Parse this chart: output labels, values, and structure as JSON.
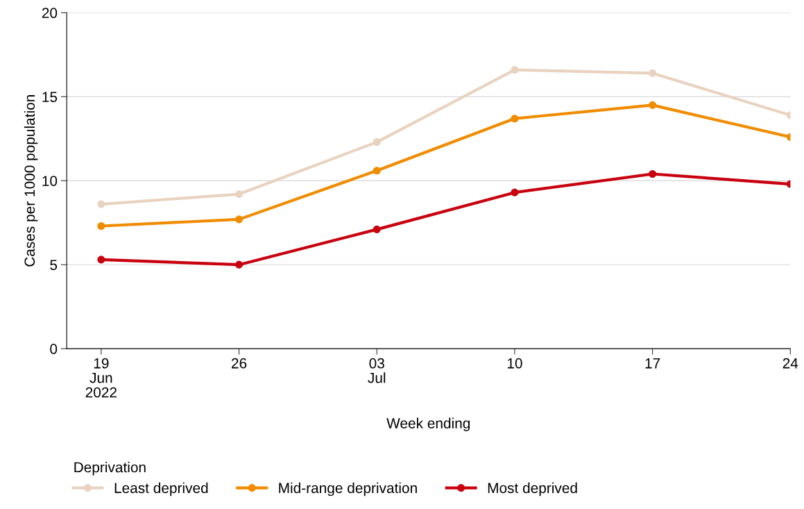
{
  "chart_data": {
    "type": "line",
    "xlabel": "Week ending",
    "ylabel": "Cases per 1000 population",
    "legend_title": "Deprivation",
    "legend": "bottom",
    "grid": "y",
    "marker": "circle",
    "line_style": "solid",
    "x": [
      "2022-06-19",
      "2022-06-26",
      "2022-07-03",
      "2022-07-10",
      "2022-07-17",
      "2022-07-24"
    ],
    "xlim": [
      "2022-06-17T06:00",
      "2022-07-24"
    ],
    "xticks": [
      {
        "value": "2022-06-19",
        "label": "19\nJun\n2022"
      },
      {
        "value": "2022-06-26",
        "label": "26"
      },
      {
        "value": "2022-07-03",
        "label": "03\nJul"
      },
      {
        "value": "2022-07-10",
        "label": "10"
      },
      {
        "value": "2022-07-17",
        "label": "17"
      },
      {
        "value": "2022-07-24",
        "label": "24"
      }
    ],
    "ylim": [
      0,
      20
    ],
    "yticks": [
      0,
      5,
      10,
      15,
      20
    ],
    "series": [
      {
        "name": "Least deprived",
        "color": "#e8d3c0",
        "values": [
          8.6,
          9.2,
          12.3,
          16.6,
          16.4,
          13.9
        ]
      },
      {
        "name": "Mid-range deprivation",
        "color": "#f08c00",
        "values": [
          7.3,
          7.7,
          10.6,
          13.7,
          14.5,
          12.6
        ]
      },
      {
        "name": "Most deprived",
        "color": "#c8000f",
        "values": [
          5.3,
          5.0,
          7.1,
          9.3,
          10.4,
          9.8
        ]
      }
    ]
  }
}
